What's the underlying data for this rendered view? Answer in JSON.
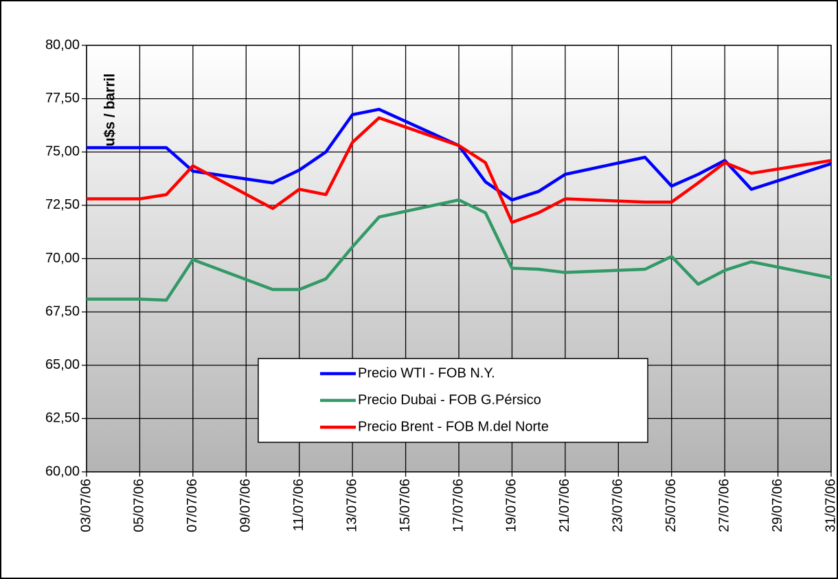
{
  "chart_data": {
    "type": "line",
    "y_label": "u$s / barril",
    "x": [
      "03/07/06",
      "05/07/06",
      "06/07/06",
      "07/07/06",
      "10/07/06",
      "11/07/06",
      "12/07/06",
      "13/07/06",
      "14/07/06",
      "17/07/06",
      "18/07/06",
      "19/07/06",
      "20/07/06",
      "21/07/06",
      "24/07/06",
      "25/07/06",
      "26/07/06",
      "27/07/06",
      "28/07/06",
      "31/07/06"
    ],
    "series": [
      {
        "name": "Precio WTI - FOB N.Y.",
        "color": "#0000ff",
        "values": [
          75.2,
          75.2,
          75.2,
          74.1,
          73.55,
          74.15,
          75.0,
          76.75,
          77.0,
          75.3,
          73.6,
          72.75,
          73.15,
          73.95,
          74.75,
          73.4,
          73.95,
          74.6,
          73.25,
          74.45
        ]
      },
      {
        "name": "Precio Dubai - FOB G.Pérsico",
        "color": "#339966",
        "values": [
          68.1,
          68.1,
          68.05,
          69.95,
          68.55,
          68.55,
          69.05,
          70.55,
          71.95,
          72.75,
          72.15,
          69.55,
          69.5,
          69.35,
          69.5,
          70.1,
          68.8,
          69.45,
          69.85,
          69.1
        ]
      },
      {
        "name": "Precio Brent - FOB M.del Norte",
        "color": "#ff0000",
        "values": [
          72.8,
          72.8,
          73.0,
          74.35,
          72.35,
          73.25,
          73.0,
          75.45,
          76.6,
          75.3,
          74.5,
          71.7,
          72.15,
          72.8,
          72.65,
          72.65,
          73.55,
          74.5,
          74.0,
          74.6
        ]
      }
    ],
    "xlim": [
      "03/07/06",
      "31/07/06"
    ],
    "xticks": [
      "03/07/06",
      "05/07/06",
      "07/07/06",
      "09/07/06",
      "11/07/06",
      "13/07/06",
      "15/07/06",
      "17/07/06",
      "19/07/06",
      "21/07/06",
      "23/07/06",
      "25/07/06",
      "27/07/06",
      "29/07/06",
      "31/07/06"
    ],
    "ylim": [
      60,
      80
    ],
    "yticks": [
      {
        "value": 60,
        "label": "60,00"
      },
      {
        "value": 62.5,
        "label": "62,50"
      },
      {
        "value": 65,
        "label": "65,00"
      },
      {
        "value": 67.5,
        "label": "67,50"
      },
      {
        "value": 70,
        "label": "70,00"
      },
      {
        "value": 72.5,
        "label": "72,50"
      },
      {
        "value": 75,
        "label": "75,00"
      },
      {
        "value": 77.5,
        "label": "77,50"
      },
      {
        "value": 80,
        "label": "80,00"
      }
    ],
    "grid": true
  }
}
